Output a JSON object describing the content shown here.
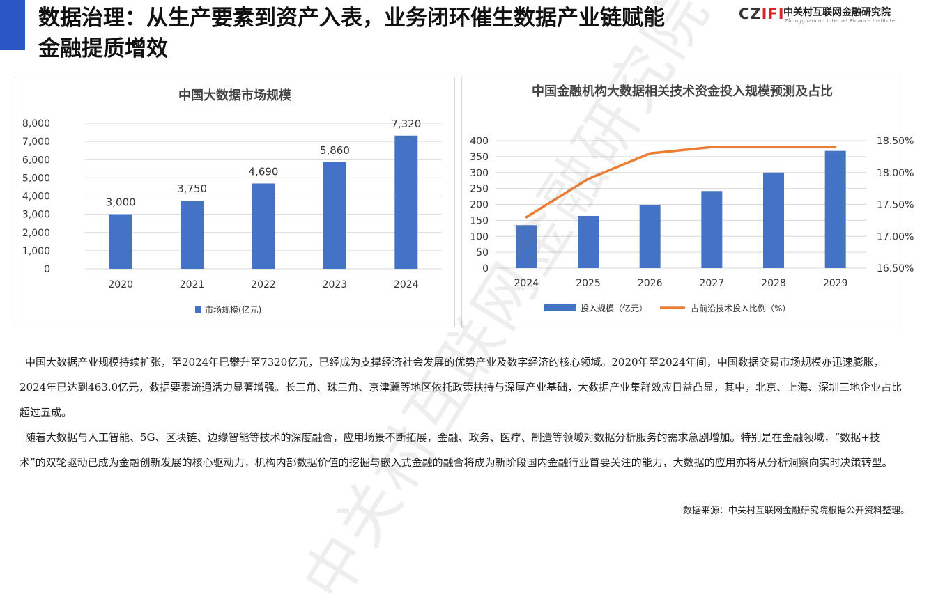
{
  "header": {
    "title": "数据治理：从生产要素到资产入表，业务闭环催生数据产业链赋能金融提质增效",
    "logo_mark_1": "CZ",
    "logo_mark_2": "IFI",
    "logo_name": "中关村互联网金融研究院",
    "logo_subtitle": "Zhongguancun Internet Finance Institute"
  },
  "chart_data": [
    {
      "type": "bar",
      "title": "中国大数据市场规模",
      "categories": [
        "2020",
        "2021",
        "2022",
        "2023",
        "2024"
      ],
      "series": [
        {
          "name": "市场规模(亿元)",
          "values": [
            3000,
            3750,
            4690,
            5860,
            7320
          ]
        }
      ],
      "data_labels": [
        "3,000",
        "3,750",
        "4,690",
        "5,860",
        "7,320"
      ],
      "yticks": [
        "0",
        "1,000",
        "2,000",
        "3,000",
        "4,000",
        "5,000",
        "6,000",
        "7,000",
        "8,000"
      ],
      "ylim": [
        0,
        8000
      ],
      "grid": true,
      "legend": "bottom",
      "colors": [
        "#4472c4"
      ]
    },
    {
      "type": "bar",
      "title": "中国金融机构大数据相关技术资金投入规模预测及占比",
      "categories": [
        "2024",
        "2025",
        "2026",
        "2027",
        "2028",
        "2029"
      ],
      "series": [
        {
          "name": "投入规模（亿元）",
          "type": "bar",
          "axis": "left",
          "values": [
            135,
            164,
            198,
            242,
            300,
            368
          ]
        },
        {
          "name": "占前沿技术投入比例（%）",
          "type": "line",
          "axis": "right",
          "values": [
            17.3,
            17.9,
            18.3,
            18.4,
            18.4,
            18.4
          ]
        }
      ],
      "yticks_left": [
        "0",
        "50",
        "100",
        "150",
        "200",
        "250",
        "300",
        "350",
        "400"
      ],
      "ylim_left": [
        0,
        400
      ],
      "yticks_right": [
        "16.50%",
        "17.00%",
        "17.50%",
        "18.00%",
        "18.50%"
      ],
      "ylim_right": [
        16.5,
        18.5
      ],
      "grid": true,
      "legend": "bottom",
      "colors": [
        "#4472c4",
        "#ed7d31"
      ]
    }
  ],
  "body": {
    "paragraph_1": "中国大数据产业规模持续扩张，至2024年已攀升至7320亿元，已经成为支撑经济社会发展的优势产业及数字经济的核心领域。2020年至2024年间，中国数据交易市场规模亦迅速膨胀，2024年已达到463.0亿元，数据要素流通活力显著增强。长三角、珠三角、京津冀等地区依托政策扶持与深厚产业基础，大数据产业集群效应日益凸显，其中，北京、上海、深圳三地企业占比超过五成。",
    "paragraph_2": "随着大数据与人工智能、5G、区块链、边缘智能等技术的深度融合，应用场景不断拓展，金融、政务、医疗、制造等领域对数据分析服务的需求急剧增加。特别是在金融领域，“数据+技术”的双轮驱动已成为金融创新发展的核心驱动力，机构内部数据价值的挖掘与嵌入式金融的融合将成为新阶段国内金融行业首要关注的能力，大数据的应用亦将从分析洞察向实时决策转型。"
  },
  "footer": {
    "source": "数据来源：中关村互联网金融研究院根据公开资料整理。"
  },
  "watermark": "中关村互联网金融研究院"
}
